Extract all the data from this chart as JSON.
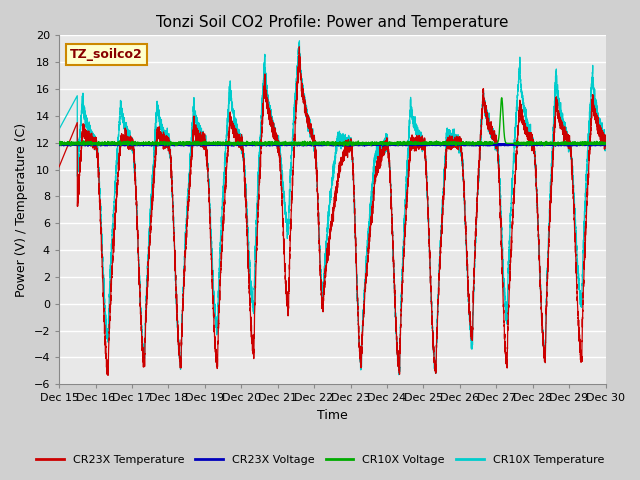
{
  "title": "Tonzi Soil CO2 Profile: Power and Temperature",
  "xlabel": "Time",
  "ylabel": "Power (V) / Temperature (C)",
  "ylim": [
    -6,
    20
  ],
  "yticks": [
    -6,
    -4,
    -2,
    0,
    2,
    4,
    6,
    8,
    10,
    12,
    14,
    16,
    18,
    20
  ],
  "xlim": [
    0,
    15
  ],
  "xtick_labels": [
    "Dec 15",
    "Dec 16",
    "Dec 17",
    "Dec 18",
    "Dec 19",
    "Dec 20",
    "Dec 21",
    "Dec 22",
    "Dec 23",
    "Dec 24",
    "Dec 25",
    "Dec 26",
    "Dec 27",
    "Dec 28",
    "Dec 29",
    "Dec 30"
  ],
  "cr23x_temp_color": "#cc0000",
  "cr23x_volt_color": "#0000bb",
  "cr10x_volt_color": "#00aa00",
  "cr10x_temp_color": "#00cccc",
  "annotation_text": "TZ_soilco2",
  "annotation_bg": "#ffffcc",
  "annotation_border": "#cc8800",
  "legend_labels": [
    "CR23X Temperature",
    "CR23X Voltage",
    "CR10X Voltage",
    "CR10X Temperature"
  ],
  "legend_colors": [
    "#cc0000",
    "#0000bb",
    "#00aa00",
    "#00cccc"
  ],
  "voltage_blue": 11.85,
  "voltage_green": 11.95,
  "green_spike_x": 12.15,
  "green_spike_height": 3.4,
  "figsize": [
    6.4,
    4.8
  ],
  "dpi": 100
}
